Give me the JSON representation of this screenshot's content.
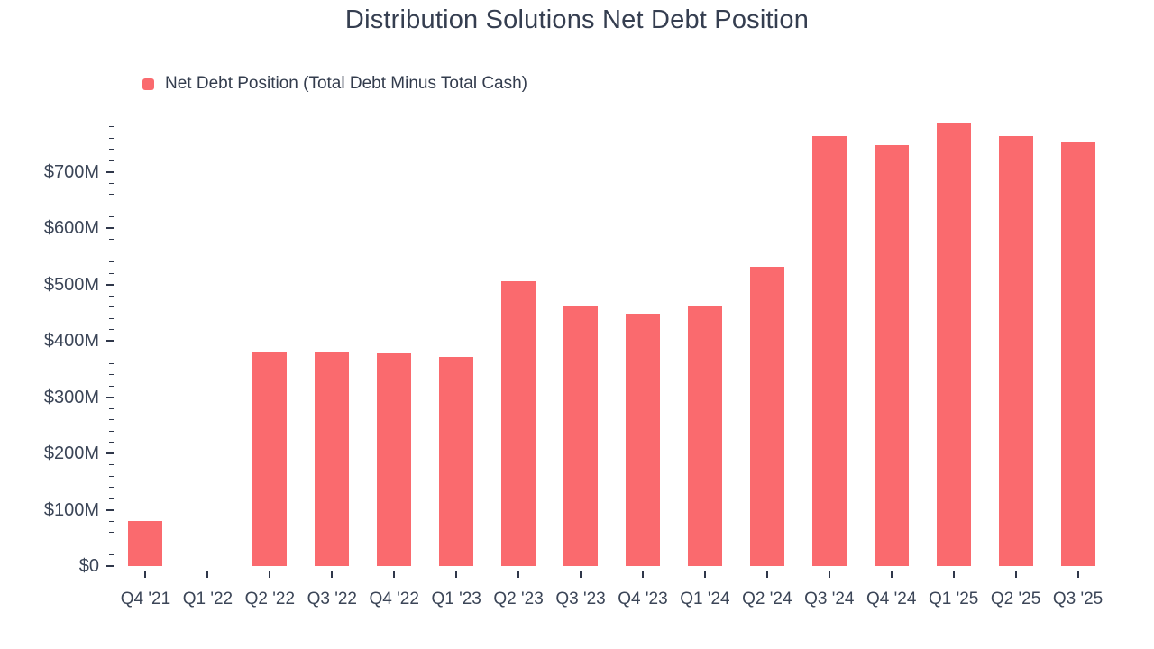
{
  "page": {
    "background": "#ffffff"
  },
  "chart_data": {
    "type": "bar",
    "title": "Distribution Solutions Net Debt Position",
    "legend": [
      {
        "label": "Net Debt Position (Total Debt Minus Total Cash)",
        "color": "#fa6a6e"
      }
    ],
    "legend_position": "top-left",
    "grid": false,
    "xlabel": "",
    "ylabel": "",
    "value_prefix": "$",
    "value_suffix": "M",
    "categories": [
      "Q4 '21",
      "Q1 '22",
      "Q2 '22",
      "Q3 '22",
      "Q4 '22",
      "Q1 '23",
      "Q2 '23",
      "Q3 '23",
      "Q4 '23",
      "Q1 '24",
      "Q2 '24",
      "Q3 '24",
      "Q4 '24",
      "Q1 '25",
      "Q2 '25",
      "Q3 '25"
    ],
    "series": [
      {
        "name": "Net Debt Position (Total Debt Minus Total Cash)",
        "color": "#fa6a6e",
        "values": [
          80,
          0,
          381,
          381,
          378,
          372,
          505,
          461,
          448,
          462,
          532,
          764,
          748,
          786,
          764,
          752
        ]
      }
    ],
    "ylim": [
      0,
      800
    ],
    "yticks": [
      {
        "value": 0,
        "label": "$0"
      },
      {
        "value": 100,
        "label": "$100M"
      },
      {
        "value": 200,
        "label": "$200M"
      },
      {
        "value": 300,
        "label": "$300M"
      },
      {
        "value": 400,
        "label": "$400M"
      },
      {
        "value": 500,
        "label": "$500M"
      },
      {
        "value": 600,
        "label": "$600M"
      },
      {
        "value": 700,
        "label": "$700M"
      }
    ],
    "minor_tick_step": 20,
    "minor_tick_max": 780
  }
}
